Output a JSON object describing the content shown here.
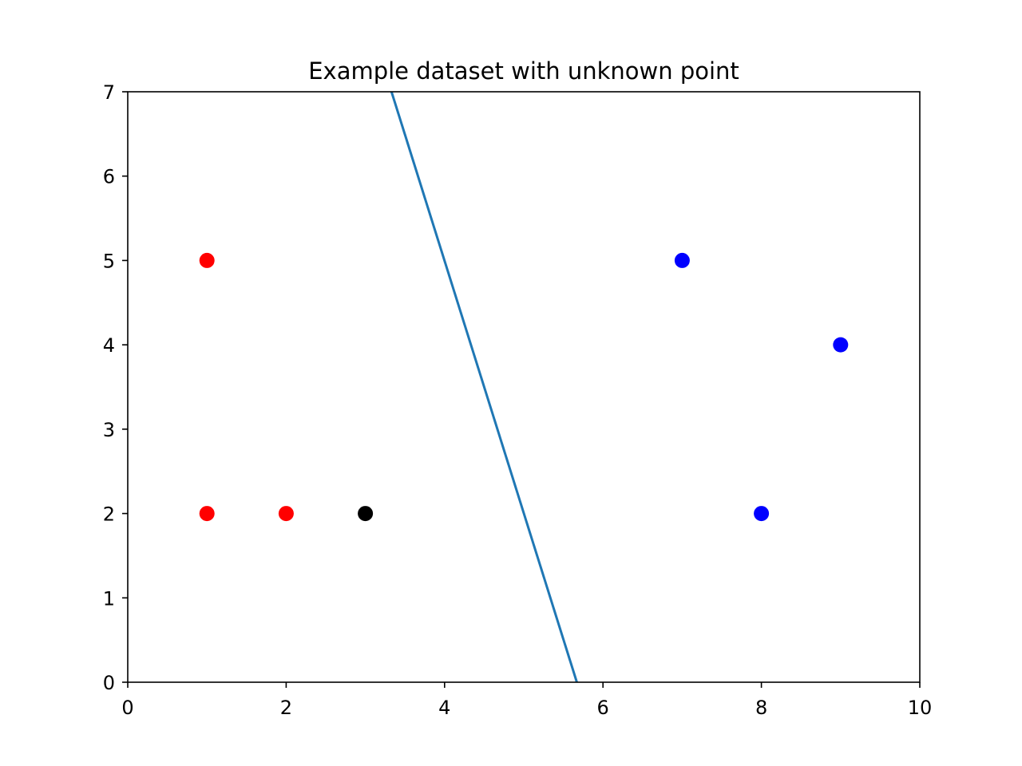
{
  "chart_data": {
    "type": "scatter",
    "title": "Example dataset with unknown point",
    "xlabel": "",
    "ylabel": "",
    "xlim": [
      0,
      10
    ],
    "ylim": [
      0,
      7
    ],
    "x_ticks": [
      0,
      2,
      4,
      6,
      8,
      10
    ],
    "y_ticks": [
      0,
      1,
      2,
      3,
      4,
      5,
      6,
      7
    ],
    "grid": false,
    "series": [
      {
        "color": "#ff0000",
        "points": [
          [
            1,
            5
          ],
          [
            1,
            2
          ],
          [
            2,
            2
          ]
        ]
      },
      {
        "color": "#0000ff",
        "points": [
          [
            7,
            5
          ],
          [
            8,
            2
          ],
          [
            9,
            4
          ]
        ]
      },
      {
        "color": "#000000",
        "points": [
          [
            3,
            2
          ]
        ]
      }
    ],
    "line": {
      "color": "#1f77b4",
      "points": [
        [
          3.33,
          7
        ],
        [
          5.67,
          0
        ]
      ]
    }
  }
}
